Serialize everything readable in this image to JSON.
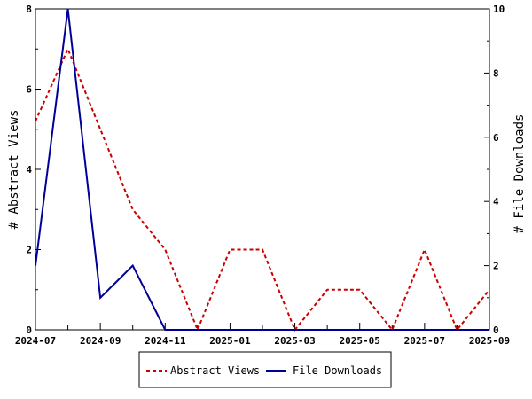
{
  "chart_data": {
    "type": "line",
    "x": [
      "2024-07",
      "2024-08",
      "2024-09",
      "2024-10",
      "2024-11",
      "2024-12",
      "2025-01",
      "2025-02",
      "2025-03",
      "2025-04",
      "2025-05",
      "2025-06",
      "2025-07",
      "2025-08",
      "2025-09"
    ],
    "x_tick_labels": [
      "2024-07",
      "2024-09",
      "2024-11",
      "2025-01",
      "2025-03",
      "2025-05",
      "2025-07",
      "2025-09"
    ],
    "ylabel_left": "# Abstract Views",
    "ylabel_right": "# File Downloads",
    "ylim_left": [
      0,
      8
    ],
    "ylim_right": [
      0,
      10
    ],
    "y_ticks_left": [
      "0",
      "2",
      "4",
      "6",
      "8"
    ],
    "y_ticks_right": [
      "0",
      "2",
      "4",
      "6",
      "8",
      "10"
    ],
    "series": [
      {
        "name": "Abstract Views",
        "axis": "left",
        "style": "dashed",
        "color": "#cc0000",
        "values": [
          5.2,
          7,
          5,
          3,
          2,
          0,
          2,
          2,
          0,
          1,
          1,
          0,
          2,
          0,
          1
        ]
      },
      {
        "name": "File Downloads",
        "axis": "right",
        "style": "solid",
        "color": "#000099",
        "values": [
          2,
          10,
          1,
          2,
          0,
          0,
          0,
          0,
          0,
          0,
          0,
          0,
          0,
          0,
          0
        ]
      }
    ],
    "grid": false,
    "legend_placement": "bottom"
  }
}
